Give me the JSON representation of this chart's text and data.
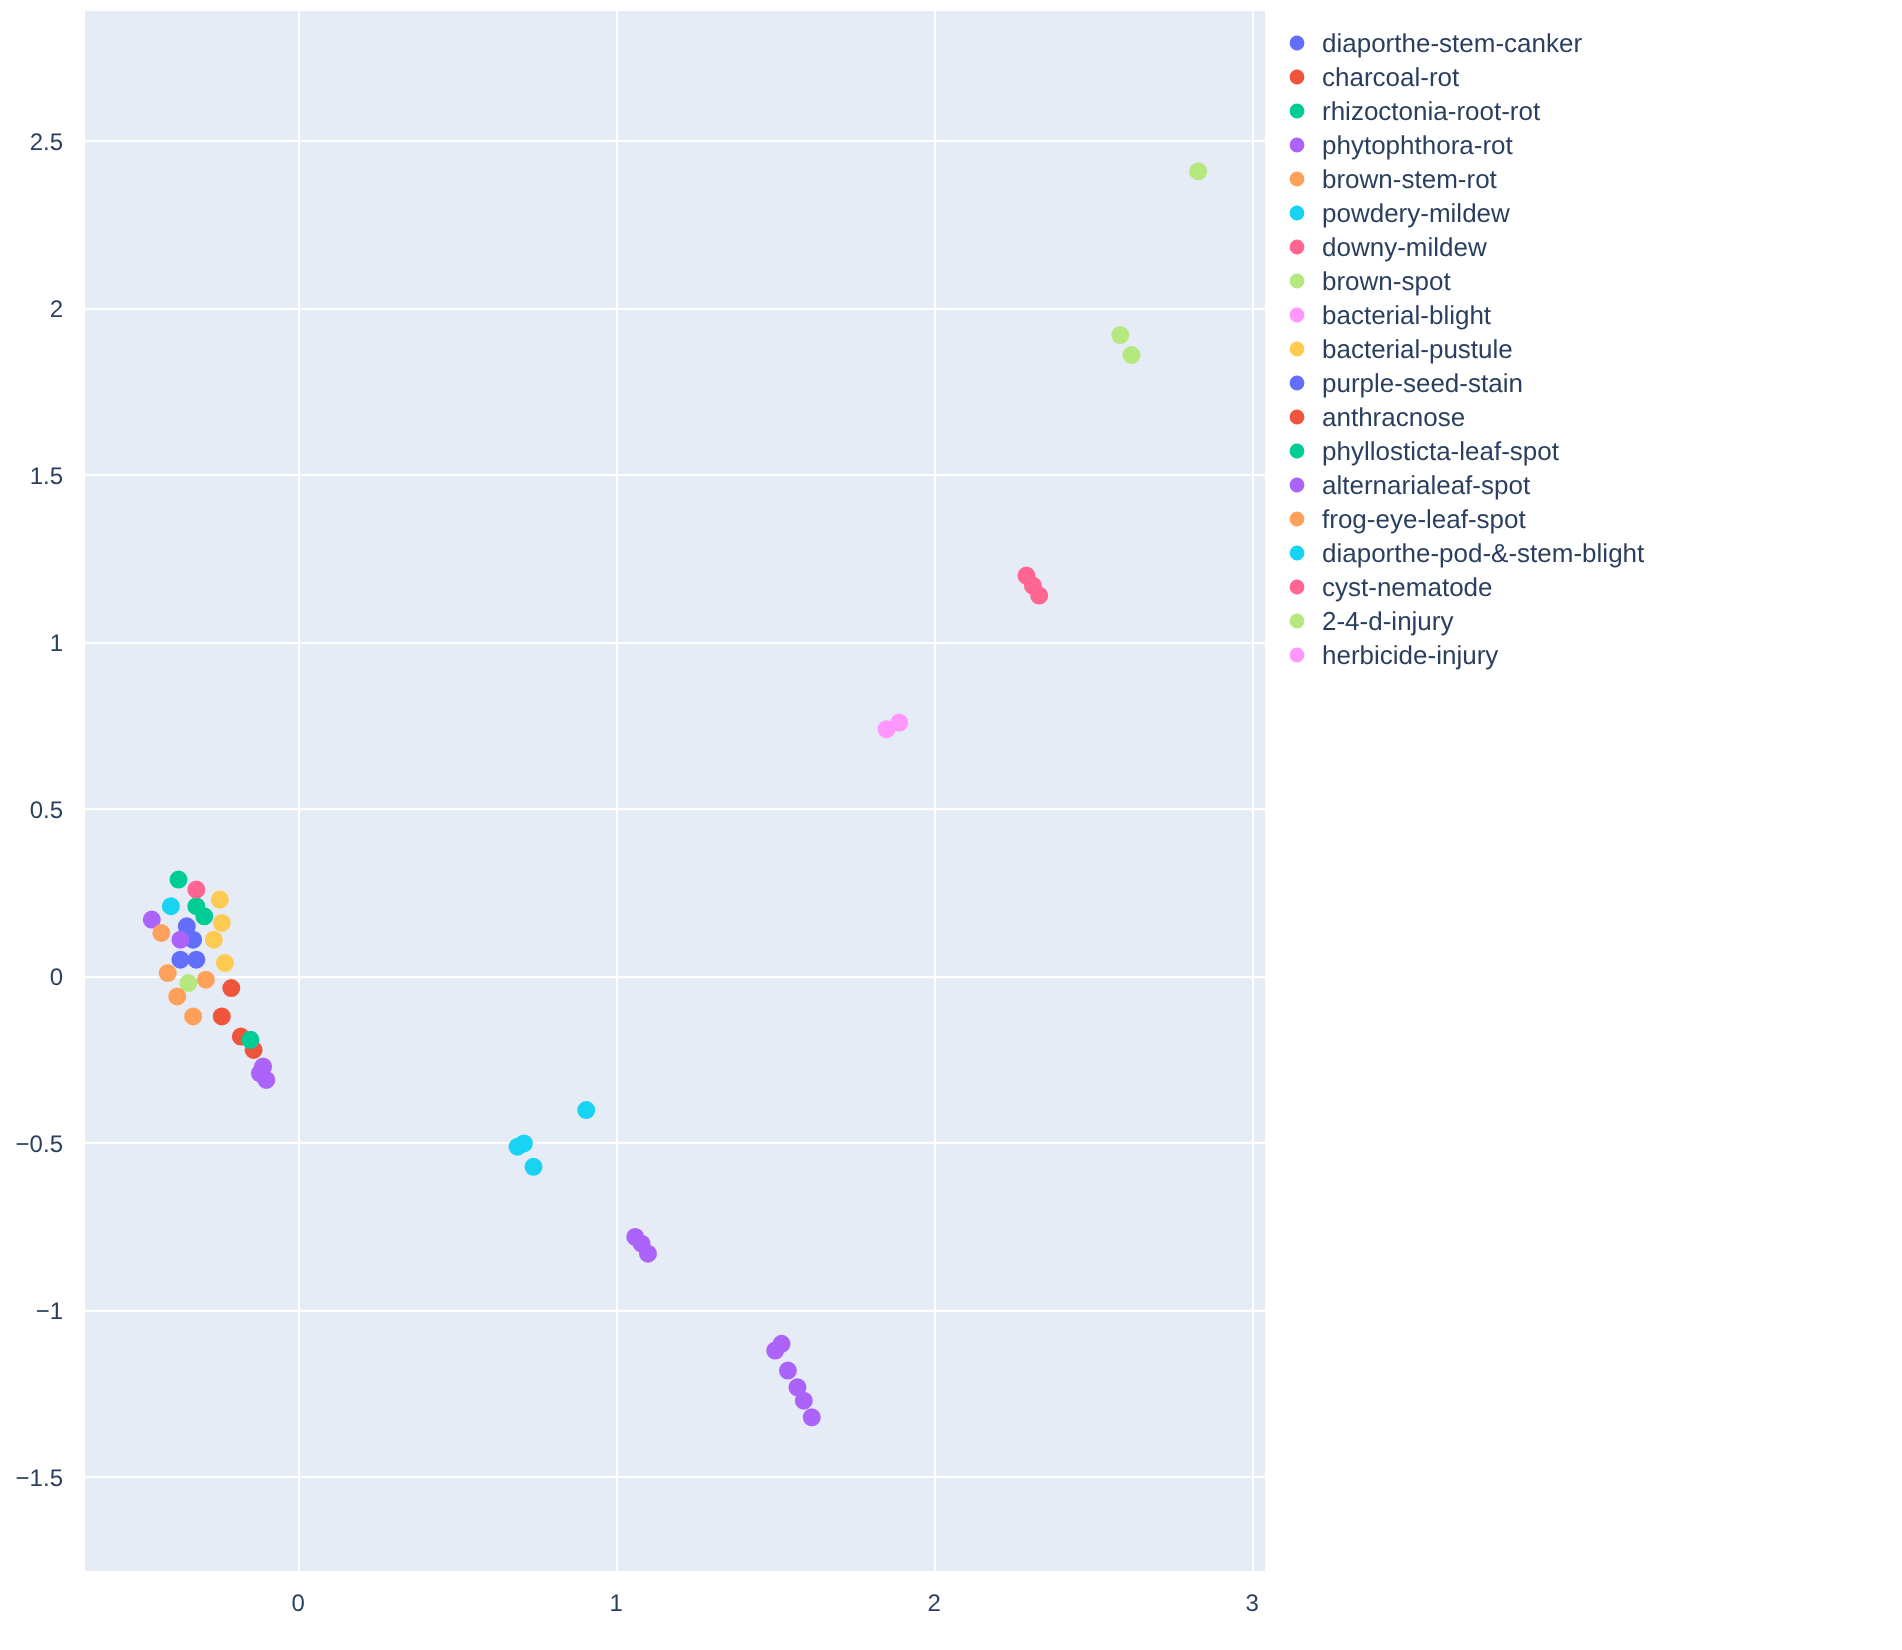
{
  "chart_data": {
    "type": "scatter",
    "xlim": [
      -0.67,
      3.04
    ],
    "ylim": [
      -1.78,
      2.89
    ],
    "xticks": [
      0,
      1,
      2,
      3
    ],
    "yticks": [
      -1.5,
      -1,
      -0.5,
      0,
      0.5,
      1,
      1.5,
      2,
      2.5
    ],
    "grid": true,
    "legend": "right",
    "marker": "circle",
    "series": [
      {
        "name": "diaporthe-stem-canker",
        "color": "#636efa",
        "x": [
          -0.33,
          -0.32,
          -0.35
        ],
        "values": [
          0.11,
          0.05,
          0.15
        ]
      },
      {
        "name": "charcoal-rot",
        "color": "#ef553b",
        "x": [
          -0.21,
          -0.18
        ],
        "values": [
          -0.035,
          -0.18
        ]
      },
      {
        "name": "rhizoctonia-root-rot",
        "color": "#00cc96",
        "x": [
          -0.376,
          -0.32
        ],
        "values": [
          0.29,
          0.21
        ]
      },
      {
        "name": "phytophthora-rot",
        "color": "#ab63fa",
        "x": [
          -0.46,
          -0.37,
          1.06,
          1.08,
          1.1,
          1.5,
          1.52,
          1.54,
          1.57,
          1.59,
          1.615
        ],
        "values": [
          0.17,
          0.11,
          -0.78,
          -0.8,
          -0.83,
          -1.12,
          -1.1,
          -1.18,
          -1.23,
          -1.27,
          -1.32
        ]
      },
      {
        "name": "brown-stem-rot",
        "color": "#ffa15a",
        "x": [
          -0.43,
          -0.41
        ],
        "values": [
          0.13,
          0.01
        ]
      },
      {
        "name": "powdery-mildew",
        "color": "#19d3f3",
        "x": [
          0.69,
          0.71,
          0.74
        ],
        "values": [
          -0.51,
          -0.5,
          -0.57
        ]
      },
      {
        "name": "downy-mildew",
        "color": "#ff6692",
        "x": [
          2.29,
          2.31,
          2.33
        ],
        "values": [
          1.2,
          1.17,
          1.14
        ]
      },
      {
        "name": "brown-spot",
        "color": "#b6e880",
        "x": [
          -0.345
        ],
        "values": [
          -0.02
        ]
      },
      {
        "name": "bacterial-blight",
        "color": "#ff97ff",
        "x": [
          1.85
        ],
        "values": [
          0.74
        ]
      },
      {
        "name": "bacterial-pustule",
        "color": "#fecb52",
        "x": [
          -0.246,
          -0.24,
          -0.265,
          -0.23
        ],
        "values": [
          0.23,
          0.16,
          0.11,
          0.04
        ]
      },
      {
        "name": "purple-seed-stain",
        "color": "#636efa",
        "x": [
          -0.37
        ],
        "values": [
          0.05
        ]
      },
      {
        "name": "anthracnose",
        "color": "#ef553b",
        "x": [
          -0.24,
          -0.14
        ],
        "values": [
          -0.12,
          -0.22
        ]
      },
      {
        "name": "phyllosticta-leaf-spot",
        "color": "#00cc96",
        "x": [
          -0.295,
          -0.15
        ],
        "values": [
          0.18,
          -0.19
        ]
      },
      {
        "name": "alternarialeaf-spot",
        "color": "#ab63fa",
        "x": [
          -0.11,
          -0.1,
          -0.12
        ],
        "values": [
          -0.27,
          -0.31,
          -0.29
        ]
      },
      {
        "name": "frog-eye-leaf-spot",
        "color": "#ffa15a",
        "x": [
          -0.38,
          -0.33,
          -0.29
        ],
        "values": [
          -0.06,
          -0.12,
          -0.01
        ]
      },
      {
        "name": "diaporthe-pod-&-stem-blight",
        "color": "#19d3f3",
        "x": [
          0.906,
          -0.4
        ],
        "values": [
          -0.4,
          0.21
        ]
      },
      {
        "name": "cyst-nematode",
        "color": "#ff6692",
        "x": [
          -0.32
        ],
        "values": [
          0.26
        ]
      },
      {
        "name": "2-4-d-injury",
        "color": "#b6e880",
        "x": [
          2.585,
          2.62,
          2.83
        ],
        "values": [
          1.92,
          1.86,
          2.41
        ]
      },
      {
        "name": "herbicide-injury",
        "color": "#ff97ff",
        "x": [
          1.89
        ],
        "values": [
          0.76
        ]
      }
    ]
  }
}
